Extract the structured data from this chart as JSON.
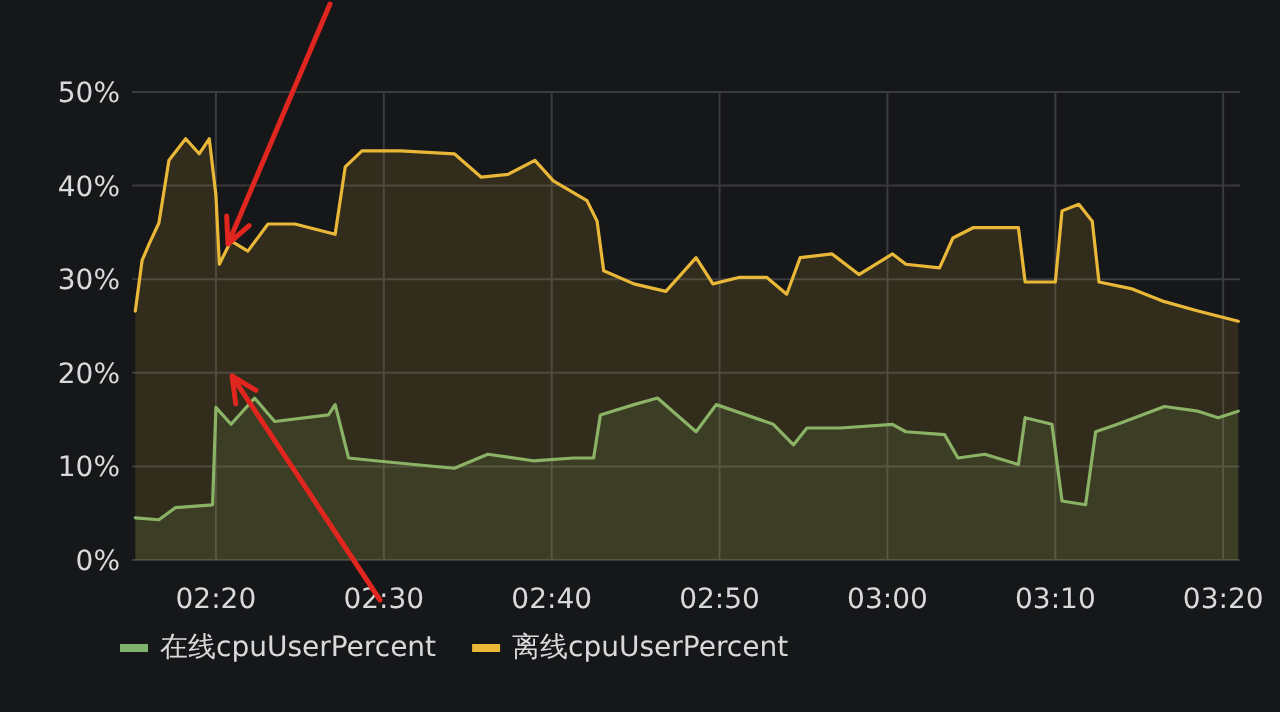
{
  "chart_data": {
    "type": "area",
    "xlim": [
      2.25,
      3.35
    ],
    "ylim": [
      0,
      50
    ],
    "xticks": [
      {
        "value": 2.3333,
        "label": "02:20"
      },
      {
        "value": 2.5,
        "label": "02:30"
      },
      {
        "value": 2.6667,
        "label": "02:40"
      },
      {
        "value": 2.8333,
        "label": "02:50"
      },
      {
        "value": 3,
        "label": "03:00"
      },
      {
        "value": 3.1667,
        "label": "03:10"
      },
      {
        "value": 3.3333,
        "label": "03:20"
      }
    ],
    "yticks": [
      {
        "value": 0,
        "label": "0%"
      },
      {
        "value": 10,
        "label": "10%"
      },
      {
        "value": 20,
        "label": "20%"
      },
      {
        "value": 30,
        "label": "30%"
      },
      {
        "value": 40,
        "label": "40%"
      },
      {
        "value": 50,
        "label": "50%"
      }
    ],
    "grid": true,
    "legend": "bottom left",
    "series": [
      {
        "name": "在线cpuUserPercent",
        "color": "#7eb26d",
        "x": [
          2.2533,
          2.2767,
          2.2933,
          2.33,
          2.3333,
          2.3483,
          2.3717,
          2.3917,
          2.445,
          2.4517,
          2.465,
          2.4917,
          2.53,
          2.57,
          2.6033,
          2.6483,
          2.6883,
          2.7083,
          2.715,
          2.7483,
          2.7717,
          2.81,
          2.83,
          2.8867,
          2.9067,
          2.92,
          2.9533,
          3.005,
          3.0183,
          3.0567,
          3.07,
          3.0967,
          3.13,
          3.1367,
          3.1633,
          3.1733,
          3.1967,
          3.2067,
          3.2283,
          3.275,
          3.3083,
          3.3283,
          3.3483
        ],
        "values": [
          4.5,
          4.3,
          5.6,
          5.9,
          16.3,
          14.5,
          17.3,
          14.8,
          15.5,
          16.6,
          10.9,
          10.6,
          10.2,
          9.8,
          11.3,
          10.6,
          10.9,
          10.9,
          15.5,
          16.6,
          17.3,
          13.7,
          16.6,
          14.5,
          12.3,
          14.1,
          14.1,
          14.5,
          13.7,
          13.4,
          10.9,
          11.3,
          10.2,
          15.2,
          14.5,
          6.3,
          5.9,
          13.7,
          14.5,
          16.4,
          15.9,
          15.2,
          15.9
        ]
      },
      {
        "name": "离线cpuUserPercent",
        "color": "#eab839",
        "x": [
          2.2533,
          2.26,
          2.2667,
          2.2767,
          2.2867,
          2.3033,
          2.3167,
          2.3267,
          2.3333,
          2.3367,
          2.3483,
          2.365,
          2.385,
          2.4117,
          2.4517,
          2.4617,
          2.4783,
          2.5167,
          2.57,
          2.5967,
          2.6233,
          2.65,
          2.6683,
          2.7017,
          2.7117,
          2.7183,
          2.7483,
          2.78,
          2.81,
          2.8267,
          2.8533,
          2.88,
          2.9,
          2.9133,
          2.945,
          2.9717,
          3.005,
          3.0183,
          3.0517,
          3.065,
          3.085,
          3.11,
          3.13,
          3.1367,
          3.1667,
          3.1733,
          3.19,
          3.2033,
          3.21,
          3.2417,
          3.275,
          3.3083,
          3.3483
        ],
        "values": [
          26.6,
          32,
          33.7,
          36,
          42.7,
          45,
          43.4,
          45,
          39,
          31.6,
          34.1,
          33,
          35.9,
          35.9,
          34.8,
          42,
          43.7,
          43.7,
          43.4,
          40.9,
          41.2,
          42.7,
          40.5,
          38.4,
          36.2,
          30.9,
          29.5,
          28.7,
          32.3,
          29.5,
          30.2,
          30.2,
          28.4,
          32.3,
          32.7,
          30.5,
          32.7,
          31.6,
          31.2,
          34.4,
          35.5,
          35.5,
          35.5,
          29.7,
          29.7,
          37.3,
          38,
          36.2,
          29.7,
          29,
          27.6,
          26.6,
          25.5
        ]
      }
    ]
  }
}
